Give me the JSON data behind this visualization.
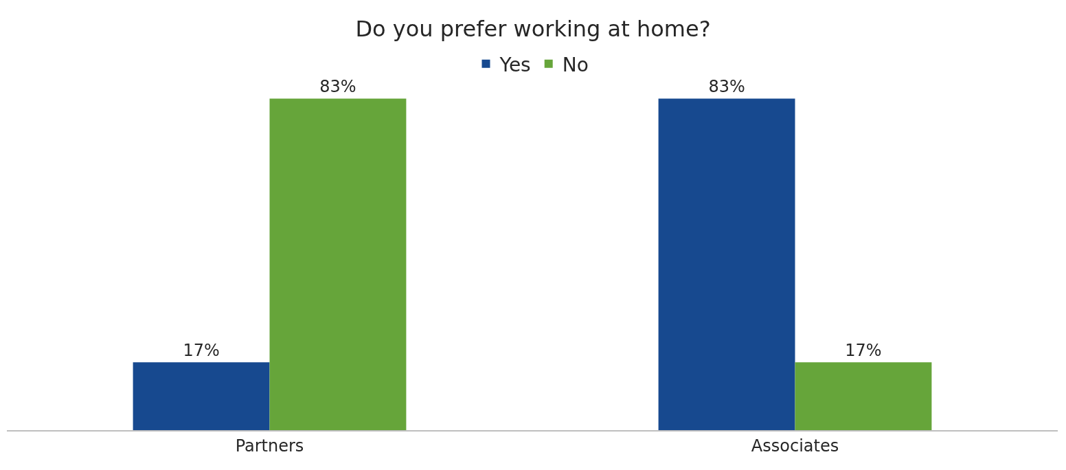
{
  "chart_data": {
    "type": "bar",
    "title": "Do you prefer working at home?",
    "categories": [
      "Partners",
      "Associates"
    ],
    "series": [
      {
        "name": "Yes",
        "color": "#17498f",
        "values": [
          17,
          83
        ],
        "value_labels": [
          "17%",
          "83%"
        ]
      },
      {
        "name": "No",
        "color": "#66a53a",
        "values": [
          83,
          17
        ],
        "value_labels": [
          "83%",
          "17%"
        ]
      }
    ],
    "legend": "top"
  }
}
